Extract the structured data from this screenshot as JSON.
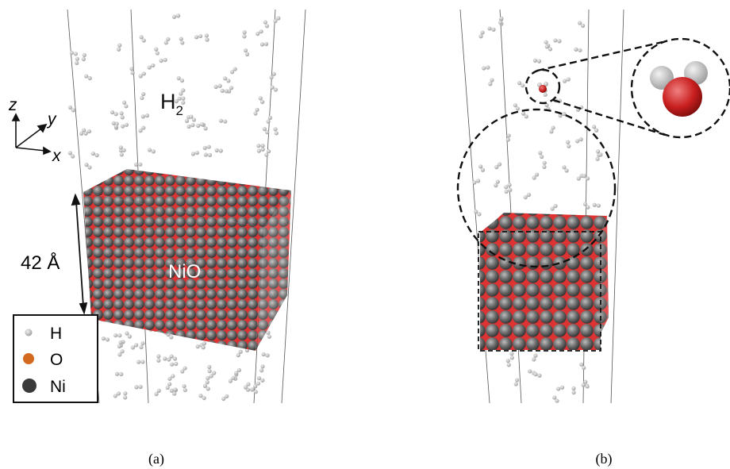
{
  "panel_a": {
    "axes": {
      "z": "z",
      "y": "y",
      "x": "x"
    },
    "gas_label": {
      "base": "H",
      "sub": "2"
    },
    "block_label": "NiO",
    "size_label": "42 Å",
    "legend": [
      "H",
      "O",
      "Ni"
    ],
    "caption": "(a)"
  },
  "panel_b": {
    "caption": "(b)"
  }
}
